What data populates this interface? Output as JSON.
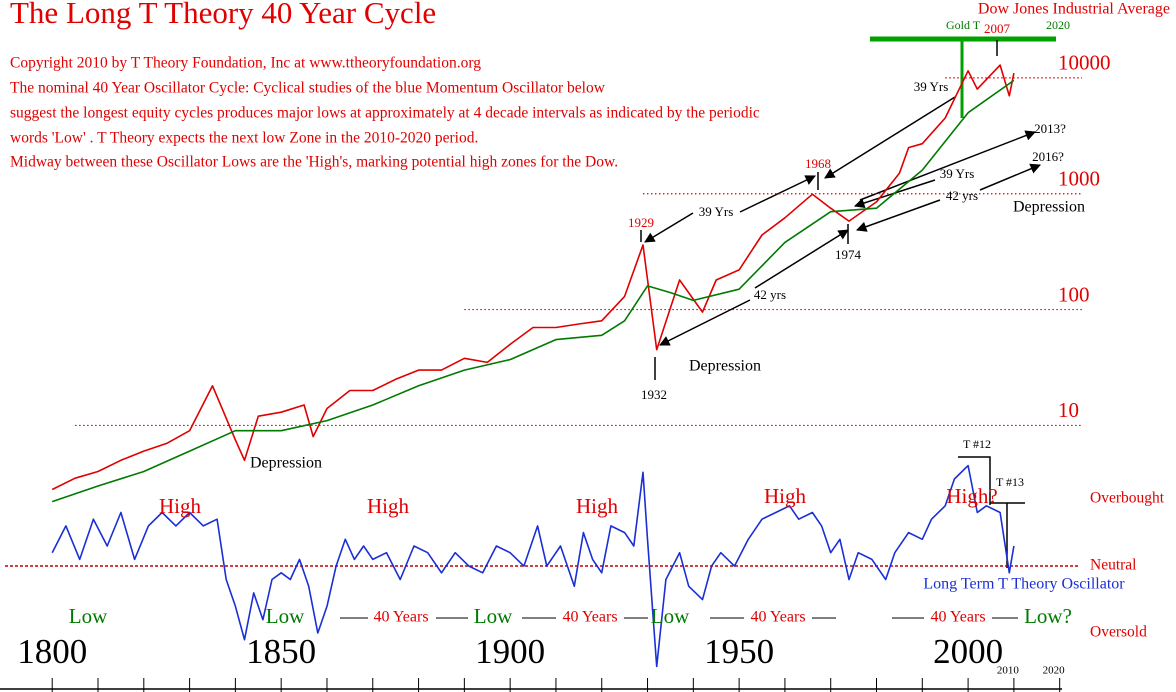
{
  "chart_data": {
    "type": "line",
    "title": "The Long T Theory 40 Year Cycle",
    "subtitle": [
      "Copyright 2010 by T Theory Foundation, Inc at www.ttheoryfoundation.org",
      "The nominal 40 Year Oscillator Cycle:  Cyclical studies of the blue Momentum Oscillator below",
      "suggest the longest equity cycles produces major lows at approximately at 4 decade intervals as indicated by the periodic",
      "words 'Low' . T Theory expects the next low Zone in the 2010-2020 period.",
      "Midway between these Oscillator Lows are the 'High's, marking potential high zones for the Dow."
    ],
    "log_y": true,
    "xlim": [
      1788.6,
      2045.4
    ],
    "xticks": [
      1800,
      1850,
      1900,
      1950,
      2000
    ],
    "xticks_small": [
      2010,
      2020
    ],
    "xticks_minor": [
      1810,
      1820,
      1830,
      1840,
      1860,
      1870,
      1880,
      1890,
      1910,
      1920,
      1930,
      1940,
      1960,
      1970,
      1980,
      1990
    ],
    "ylim": [
      0.05,
      47000
    ],
    "yticks": [
      10,
      100,
      1000,
      10000
    ],
    "grid": true,
    "y2lim": [
      -1.88,
      8.45
    ],
    "y2ticks": [
      {
        "value": 1,
        "label": "Overbought"
      },
      {
        "value": 0,
        "label": "Neutral"
      },
      {
        "value": -1,
        "label": "Oversold"
      }
    ],
    "y2_reference": 0,
    "series": [
      {
        "name": "Dow Jones Industrial Average",
        "color": "#e00000",
        "x": [
          1800,
          1805,
          1810,
          1815,
          1820,
          1825,
          1830,
          1835,
          1840,
          1842,
          1845,
          1850,
          1855,
          1857,
          1860,
          1865,
          1870,
          1875,
          1880,
          1885,
          1890,
          1895,
          1900,
          1905,
          1910,
          1915,
          1920,
          1925,
          1929,
          1932,
          1937,
          1942,
          1945,
          1950,
          1955,
          1960,
          1966,
          1970,
          1974,
          1980,
          1985,
          1987,
          1990,
          1995,
          2000,
          2002,
          2007,
          2009,
          2010
        ],
        "values": [
          2.8,
          3.5,
          4,
          5,
          6,
          7,
          9,
          22,
          7.5,
          5,
          12,
          13,
          15,
          8,
          14,
          20,
          20,
          25,
          30,
          30,
          38,
          35,
          50,
          70,
          70,
          75,
          80,
          130,
          361,
          45,
          180,
          95,
          180,
          220,
          440,
          620,
          990,
          750,
          580,
          850,
          1500,
          2500,
          2700,
          4500,
          11500,
          8000,
          12900,
          7000,
          11000
        ]
      },
      {
        "color": "#007a00",
        "x": [
          1800,
          1810,
          1820,
          1830,
          1840,
          1850,
          1860,
          1870,
          1880,
          1890,
          1900,
          1910,
          1920,
          1925,
          1930,
          1935,
          1940,
          1950,
          1960,
          1970,
          1980,
          1990,
          2000,
          2010
        ],
        "values": [
          2.2,
          3,
          4,
          6,
          9,
          9,
          11,
          15,
          22,
          30,
          37,
          55,
          60,
          80,
          160,
          140,
          120,
          150,
          380,
          700,
          750,
          1600,
          5000,
          9500
        ]
      },
      {
        "name": "Long Term T Theory Oscillator",
        "color": "#1a2fd6",
        "axis": "y2",
        "x": [
          1800,
          1803,
          1806,
          1809,
          1812,
          1815,
          1818,
          1821,
          1824,
          1827,
          1830,
          1833,
          1836,
          1838,
          1840,
          1842,
          1844,
          1846,
          1848,
          1850,
          1852,
          1854,
          1856,
          1858,
          1860,
          1862,
          1864,
          1866,
          1868,
          1870,
          1873,
          1876,
          1879,
          1882,
          1885,
          1888,
          1891,
          1894,
          1897,
          1900,
          1903,
          1906,
          1908,
          1911,
          1914,
          1916,
          1918,
          1920,
          1922,
          1925,
          1927,
          1929,
          1930,
          1932,
          1934,
          1937,
          1939,
          1942,
          1944,
          1946,
          1949,
          1952,
          1955,
          1958,
          1961,
          1963,
          1966,
          1968,
          1970,
          1972,
          1974,
          1976,
          1979,
          1982,
          1984,
          1987,
          1990,
          1992,
          1995,
          1997,
          2000,
          2002,
          2004,
          2007,
          2009,
          2010
        ],
        "values": [
          0.2,
          0.6,
          0.1,
          0.7,
          0.3,
          0.8,
          0.1,
          0.6,
          0.8,
          0.6,
          0.8,
          0.6,
          0.7,
          -0.2,
          -0.6,
          -1.1,
          -0.4,
          -0.8,
          -0.2,
          -0.1,
          -0.2,
          0.1,
          -0.3,
          -1.0,
          -0.6,
          0.0,
          0.4,
          0.1,
          0.3,
          0.1,
          0.2,
          -0.2,
          0.3,
          0.2,
          -0.1,
          0.2,
          0.0,
          -0.1,
          0.3,
          0.2,
          0.0,
          0.6,
          0.0,
          0.3,
          -0.3,
          0.5,
          0.1,
          -0.1,
          0.6,
          0.5,
          0.3,
          1.4,
          0.4,
          -1.5,
          -0.2,
          0.2,
          -0.3,
          -0.5,
          0.0,
          0.2,
          0.0,
          0.4,
          0.7,
          0.8,
          0.9,
          0.7,
          0.8,
          0.6,
          0.2,
          0.4,
          -0.2,
          0.2,
          0.1,
          -0.2,
          0.2,
          0.5,
          0.4,
          0.7,
          0.9,
          1.3,
          1.5,
          0.8,
          0.9,
          0.8,
          -0.1,
          0.3
        ]
      }
    ],
    "annotations": [
      {
        "text": "Gold T",
        "color": "#007a00"
      },
      {
        "text": "2007",
        "color": "#e00000"
      },
      {
        "text": "2020",
        "color": "#007a00"
      },
      {
        "text": "39 Yrs",
        "color": "#000000"
      },
      {
        "text": "2013?",
        "color": "#000000"
      },
      {
        "text": "2016?",
        "color": "#000000"
      },
      {
        "text": "1968",
        "color": "#e00000"
      },
      {
        "text": "1929",
        "color": "#e00000"
      },
      {
        "text": "39 Yrs",
        "color": "#000000"
      },
      {
        "text": "39 Yrs",
        "color": "#000000"
      },
      {
        "text": "42 yrs",
        "color": "#000000"
      },
      {
        "text": "Depression",
        "color": "#000000"
      },
      {
        "text": "1974",
        "color": "#000000"
      },
      {
        "text": "42 yrs",
        "color": "#000000"
      },
      {
        "text": "Depression",
        "color": "#000000"
      },
      {
        "text": "1932",
        "color": "#000000"
      },
      {
        "text": "Depression",
        "color": "#000000"
      },
      {
        "text": "T #12",
        "color": "#000000"
      },
      {
        "text": "T #13",
        "color": "#000000"
      },
      {
        "text": "High",
        "color": "#e00000"
      },
      {
        "text": "High",
        "color": "#e00000"
      },
      {
        "text": "High",
        "color": "#e00000"
      },
      {
        "text": "High",
        "color": "#e00000"
      },
      {
        "text": "High?",
        "color": "#e00000"
      },
      {
        "text": "Low",
        "color": "#007a00"
      },
      {
        "text": "Low",
        "color": "#007a00"
      },
      {
        "text": "Low",
        "color": "#007a00"
      },
      {
        "text": "Low",
        "color": "#007a00"
      },
      {
        "text": "Low?",
        "color": "#007a00"
      },
      {
        "text": "40 Years",
        "color": "#e00000"
      },
      {
        "text": "40 Years",
        "color": "#e00000"
      },
      {
        "text": "40 Years",
        "color": "#e00000"
      },
      {
        "text": "40 Years",
        "color": "#e00000"
      }
    ]
  }
}
